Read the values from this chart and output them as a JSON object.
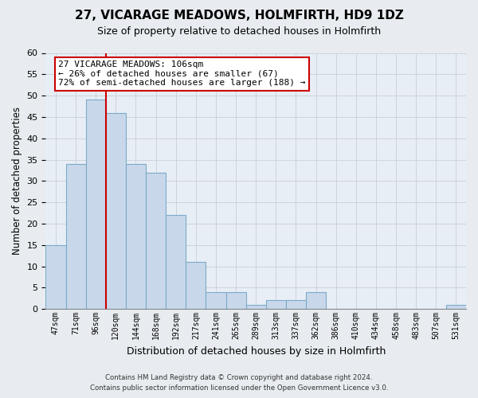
{
  "title": "27, VICARAGE MEADOWS, HOLMFIRTH, HD9 1DZ",
  "subtitle": "Size of property relative to detached houses in Holmfirth",
  "xlabel": "Distribution of detached houses by size in Holmfirth",
  "ylabel": "Number of detached properties",
  "bar_color": "#c8d8ea",
  "bar_edge_color": "#7baac8",
  "bar_heights": [
    15,
    34,
    49,
    46,
    34,
    32,
    22,
    11,
    4,
    4,
    1,
    2,
    2,
    4,
    0,
    0,
    0,
    0,
    0,
    0,
    1
  ],
  "bin_labels": [
    "47sqm",
    "71sqm",
    "96sqm",
    "120sqm",
    "144sqm",
    "168sqm",
    "192sqm",
    "217sqm",
    "241sqm",
    "265sqm",
    "289sqm",
    "313sqm",
    "337sqm",
    "362sqm",
    "386sqm",
    "410sqm",
    "434sqm",
    "458sqm",
    "483sqm",
    "507sqm",
    "531sqm"
  ],
  "ylim": [
    0,
    60
  ],
  "yticks": [
    0,
    5,
    10,
    15,
    20,
    25,
    30,
    35,
    40,
    45,
    50,
    55,
    60
  ],
  "vline_x": 2.5,
  "vline_color": "#cc0000",
  "annotation_lines": [
    "27 VICARAGE MEADOWS: 106sqm",
    "← 26% of detached houses are smaller (67)",
    "72% of semi-detached houses are larger (188) →"
  ],
  "footer_line1": "Contains HM Land Registry data © Crown copyright and database right 2024.",
  "footer_line2": "Contains public sector information licensed under the Open Government Licence v3.0.",
  "background_color": "#e8ecf0",
  "plot_background_color": "#e8eef6"
}
